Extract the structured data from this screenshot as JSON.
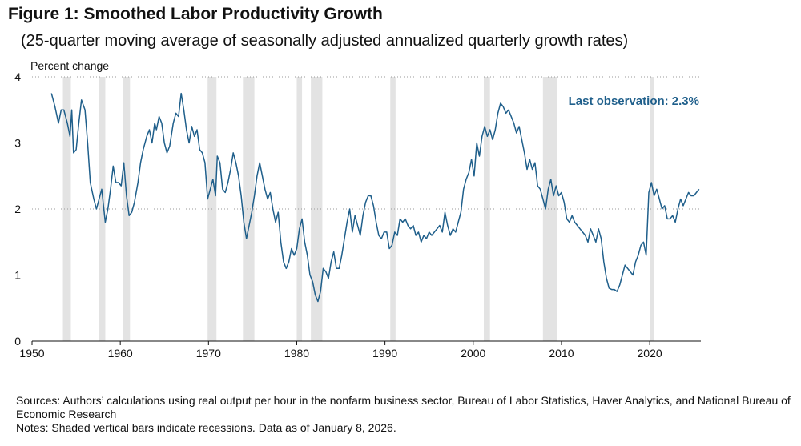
{
  "title": "Figure 1:  Smoothed Labor Productivity Growth",
  "subtitle": "(25-quarter moving average of seasonally adjusted annualized quarterly growth rates)",
  "sources": "Sources: Authors’ calculations using real output per hour in the nonfarm business sector, Bureau of Labor Statistics, Haver Analytics, and National Bureau of Economic Research",
  "notes": "Notes: Shaded vertical bars indicate recessions. Data as of January 8, 2026.",
  "colors": {
    "line": "#1f5f8b",
    "recession": "#e3e3e3",
    "annotation": "#1f5f8b",
    "grid": "#9a9a9a"
  },
  "chart_data": {
    "type": "line",
    "title": "Figure 1:  Smoothed Labor Productivity Growth",
    "ylabel": "Percent change",
    "xlabel": "",
    "xlim": [
      1950,
      2025.8
    ],
    "ylim": [
      0,
      4
    ],
    "x_ticks": [
      1950,
      1960,
      1970,
      1980,
      1990,
      2000,
      2010,
      2020
    ],
    "y_ticks": [
      0,
      1,
      2,
      3,
      4
    ],
    "grid": "horizontal dotted",
    "annotation": "Last observation: 2.3%",
    "recessions": [
      [
        1953.5,
        1954.4
      ],
      [
        1957.6,
        1958.3
      ],
      [
        1960.3,
        1961.1
      ],
      [
        1969.9,
        1970.9
      ],
      [
        1973.9,
        1975.2
      ],
      [
        1980.0,
        1980.6
      ],
      [
        1981.6,
        1982.9
      ],
      [
        1990.6,
        1991.2
      ],
      [
        2001.2,
        2001.9
      ],
      [
        2007.9,
        2009.5
      ],
      [
        2020.0,
        2020.5
      ]
    ],
    "series": [
      {
        "points": [
          [
            1952.2,
            3.75
          ],
          [
            1952.6,
            3.55
          ],
          [
            1953.0,
            3.3
          ],
          [
            1953.3,
            3.5
          ],
          [
            1953.6,
            3.5
          ],
          [
            1954.0,
            3.3
          ],
          [
            1954.3,
            3.1
          ],
          [
            1954.5,
            3.5
          ],
          [
            1954.7,
            2.85
          ],
          [
            1955.0,
            2.9
          ],
          [
            1955.3,
            3.3
          ],
          [
            1955.6,
            3.65
          ],
          [
            1956.0,
            3.5
          ],
          [
            1956.3,
            3.0
          ],
          [
            1956.6,
            2.4
          ],
          [
            1957.0,
            2.15
          ],
          [
            1957.3,
            2.0
          ],
          [
            1957.6,
            2.15
          ],
          [
            1957.9,
            2.3
          ],
          [
            1958.3,
            1.8
          ],
          [
            1958.6,
            2.0
          ],
          [
            1958.9,
            2.3
          ],
          [
            1959.2,
            2.65
          ],
          [
            1959.5,
            2.4
          ],
          [
            1959.8,
            2.4
          ],
          [
            1960.1,
            2.35
          ],
          [
            1960.4,
            2.7
          ],
          [
            1960.7,
            2.2
          ],
          [
            1961.0,
            1.9
          ],
          [
            1961.3,
            1.95
          ],
          [
            1961.6,
            2.1
          ],
          [
            1962.0,
            2.4
          ],
          [
            1962.3,
            2.7
          ],
          [
            1962.6,
            2.9
          ],
          [
            1963.0,
            3.1
          ],
          [
            1963.3,
            3.2
          ],
          [
            1963.6,
            3.0
          ],
          [
            1963.9,
            3.3
          ],
          [
            1964.1,
            3.2
          ],
          [
            1964.4,
            3.4
          ],
          [
            1964.7,
            3.3
          ],
          [
            1965.0,
            3.0
          ],
          [
            1965.3,
            2.85
          ],
          [
            1965.6,
            2.95
          ],
          [
            1966.0,
            3.3
          ],
          [
            1966.3,
            3.45
          ],
          [
            1966.6,
            3.4
          ],
          [
            1966.9,
            3.75
          ],
          [
            1967.2,
            3.5
          ],
          [
            1967.5,
            3.2
          ],
          [
            1967.8,
            3.0
          ],
          [
            1968.1,
            3.25
          ],
          [
            1968.4,
            3.1
          ],
          [
            1968.7,
            3.2
          ],
          [
            1969.0,
            2.9
          ],
          [
            1969.3,
            2.85
          ],
          [
            1969.6,
            2.7
          ],
          [
            1969.9,
            2.15
          ],
          [
            1970.2,
            2.3
          ],
          [
            1970.5,
            2.45
          ],
          [
            1970.8,
            2.2
          ],
          [
            1971.0,
            2.8
          ],
          [
            1971.3,
            2.7
          ],
          [
            1971.6,
            2.3
          ],
          [
            1971.9,
            2.25
          ],
          [
            1972.2,
            2.4
          ],
          [
            1972.5,
            2.6
          ],
          [
            1972.8,
            2.85
          ],
          [
            1973.1,
            2.7
          ],
          [
            1973.4,
            2.5
          ],
          [
            1973.7,
            2.2
          ],
          [
            1974.0,
            1.8
          ],
          [
            1974.3,
            1.55
          ],
          [
            1974.6,
            1.75
          ],
          [
            1974.9,
            1.95
          ],
          [
            1975.2,
            2.2
          ],
          [
            1975.5,
            2.5
          ],
          [
            1975.8,
            2.7
          ],
          [
            1976.1,
            2.5
          ],
          [
            1976.4,
            2.3
          ],
          [
            1976.7,
            2.15
          ],
          [
            1977.0,
            2.25
          ],
          [
            1977.3,
            2.0
          ],
          [
            1977.6,
            1.8
          ],
          [
            1977.9,
            1.95
          ],
          [
            1978.2,
            1.5
          ],
          [
            1978.5,
            1.2
          ],
          [
            1978.8,
            1.1
          ],
          [
            1979.1,
            1.2
          ],
          [
            1979.4,
            1.4
          ],
          [
            1979.7,
            1.3
          ],
          [
            1980.0,
            1.4
          ],
          [
            1980.3,
            1.7
          ],
          [
            1980.6,
            1.85
          ],
          [
            1980.9,
            1.5
          ],
          [
            1981.2,
            1.3
          ],
          [
            1981.5,
            1.0
          ],
          [
            1981.8,
            0.9
          ],
          [
            1982.1,
            0.7
          ],
          [
            1982.4,
            0.6
          ],
          [
            1982.7,
            0.75
          ],
          [
            1983.0,
            1.1
          ],
          [
            1983.3,
            1.05
          ],
          [
            1983.6,
            0.95
          ],
          [
            1983.9,
            1.2
          ],
          [
            1984.2,
            1.35
          ],
          [
            1984.5,
            1.1
          ],
          [
            1984.8,
            1.1
          ],
          [
            1985.1,
            1.3
          ],
          [
            1985.4,
            1.55
          ],
          [
            1985.7,
            1.8
          ],
          [
            1986.0,
            2.0
          ],
          [
            1986.3,
            1.65
          ],
          [
            1986.6,
            1.9
          ],
          [
            1986.9,
            1.75
          ],
          [
            1987.2,
            1.6
          ],
          [
            1987.5,
            1.9
          ],
          [
            1987.8,
            2.1
          ],
          [
            1988.1,
            2.2
          ],
          [
            1988.4,
            2.2
          ],
          [
            1988.7,
            2.05
          ],
          [
            1989.0,
            1.8
          ],
          [
            1989.3,
            1.6
          ],
          [
            1989.6,
            1.55
          ],
          [
            1989.9,
            1.65
          ],
          [
            1990.2,
            1.65
          ],
          [
            1990.5,
            1.4
          ],
          [
            1990.8,
            1.45
          ],
          [
            1991.1,
            1.65
          ],
          [
            1991.4,
            1.6
          ],
          [
            1991.7,
            1.85
          ],
          [
            1992.0,
            1.8
          ],
          [
            1992.3,
            1.85
          ],
          [
            1992.6,
            1.75
          ],
          [
            1992.9,
            1.7
          ],
          [
            1993.2,
            1.75
          ],
          [
            1993.5,
            1.6
          ],
          [
            1993.8,
            1.65
          ],
          [
            1994.1,
            1.5
          ],
          [
            1994.4,
            1.6
          ],
          [
            1994.7,
            1.55
          ],
          [
            1995.0,
            1.65
          ],
          [
            1995.3,
            1.6
          ],
          [
            1995.6,
            1.65
          ],
          [
            1995.9,
            1.7
          ],
          [
            1996.2,
            1.75
          ],
          [
            1996.5,
            1.65
          ],
          [
            1996.8,
            1.95
          ],
          [
            1997.1,
            1.75
          ],
          [
            1997.4,
            1.6
          ],
          [
            1997.7,
            1.7
          ],
          [
            1998.0,
            1.65
          ],
          [
            1998.3,
            1.8
          ],
          [
            1998.6,
            1.95
          ],
          [
            1998.9,
            2.3
          ],
          [
            1999.2,
            2.45
          ],
          [
            1999.5,
            2.55
          ],
          [
            1999.8,
            2.75
          ],
          [
            2000.1,
            2.5
          ],
          [
            2000.4,
            3.0
          ],
          [
            2000.7,
            2.8
          ],
          [
            2001.0,
            3.1
          ],
          [
            2001.3,
            3.25
          ],
          [
            2001.6,
            3.1
          ],
          [
            2001.9,
            3.2
          ],
          [
            2002.2,
            3.05
          ],
          [
            2002.5,
            3.2
          ],
          [
            2002.8,
            3.45
          ],
          [
            2003.1,
            3.6
          ],
          [
            2003.4,
            3.55
          ],
          [
            2003.7,
            3.45
          ],
          [
            2004.0,
            3.5
          ],
          [
            2004.3,
            3.4
          ],
          [
            2004.6,
            3.3
          ],
          [
            2004.9,
            3.15
          ],
          [
            2005.2,
            3.25
          ],
          [
            2005.5,
            3.05
          ],
          [
            2005.8,
            2.85
          ],
          [
            2006.1,
            2.6
          ],
          [
            2006.4,
            2.75
          ],
          [
            2006.7,
            2.6
          ],
          [
            2007.0,
            2.7
          ],
          [
            2007.3,
            2.35
          ],
          [
            2007.6,
            2.3
          ],
          [
            2007.9,
            2.15
          ],
          [
            2008.2,
            2.0
          ],
          [
            2008.5,
            2.3
          ],
          [
            2008.8,
            2.45
          ],
          [
            2009.1,
            2.2
          ],
          [
            2009.4,
            2.35
          ],
          [
            2009.7,
            2.2
          ],
          [
            2010.0,
            2.25
          ],
          [
            2010.3,
            2.1
          ],
          [
            2010.6,
            1.85
          ],
          [
            2010.9,
            1.8
          ],
          [
            2011.2,
            1.9
          ],
          [
            2011.5,
            1.8
          ],
          [
            2011.8,
            1.75
          ],
          [
            2012.1,
            1.7
          ],
          [
            2012.4,
            1.65
          ],
          [
            2012.7,
            1.6
          ],
          [
            2013.0,
            1.5
          ],
          [
            2013.3,
            1.7
          ],
          [
            2013.6,
            1.6
          ],
          [
            2013.9,
            1.5
          ],
          [
            2014.2,
            1.7
          ],
          [
            2014.5,
            1.55
          ],
          [
            2014.8,
            1.2
          ],
          [
            2015.1,
            0.95
          ],
          [
            2015.4,
            0.8
          ],
          [
            2015.7,
            0.78
          ],
          [
            2016.0,
            0.78
          ],
          [
            2016.3,
            0.75
          ],
          [
            2016.6,
            0.85
          ],
          [
            2016.9,
            1.0
          ],
          [
            2017.2,
            1.15
          ],
          [
            2017.5,
            1.1
          ],
          [
            2017.8,
            1.05
          ],
          [
            2018.1,
            1.0
          ],
          [
            2018.4,
            1.2
          ],
          [
            2018.7,
            1.3
          ],
          [
            2019.0,
            1.45
          ],
          [
            2019.3,
            1.5
          ],
          [
            2019.6,
            1.3
          ],
          [
            2019.9,
            2.25
          ],
          [
            2020.2,
            2.4
          ],
          [
            2020.5,
            2.2
          ],
          [
            2020.8,
            2.3
          ],
          [
            2021.1,
            2.15
          ],
          [
            2021.4,
            2.0
          ],
          [
            2021.7,
            2.05
          ],
          [
            2022.0,
            1.85
          ],
          [
            2022.3,
            1.85
          ],
          [
            2022.6,
            1.9
          ],
          [
            2022.9,
            1.8
          ],
          [
            2023.2,
            2.0
          ],
          [
            2023.5,
            2.15
          ],
          [
            2023.8,
            2.05
          ],
          [
            2024.1,
            2.15
          ],
          [
            2024.4,
            2.25
          ],
          [
            2024.7,
            2.2
          ],
          [
            2025.0,
            2.2
          ],
          [
            2025.3,
            2.25
          ],
          [
            2025.6,
            2.3
          ]
        ]
      }
    ]
  }
}
